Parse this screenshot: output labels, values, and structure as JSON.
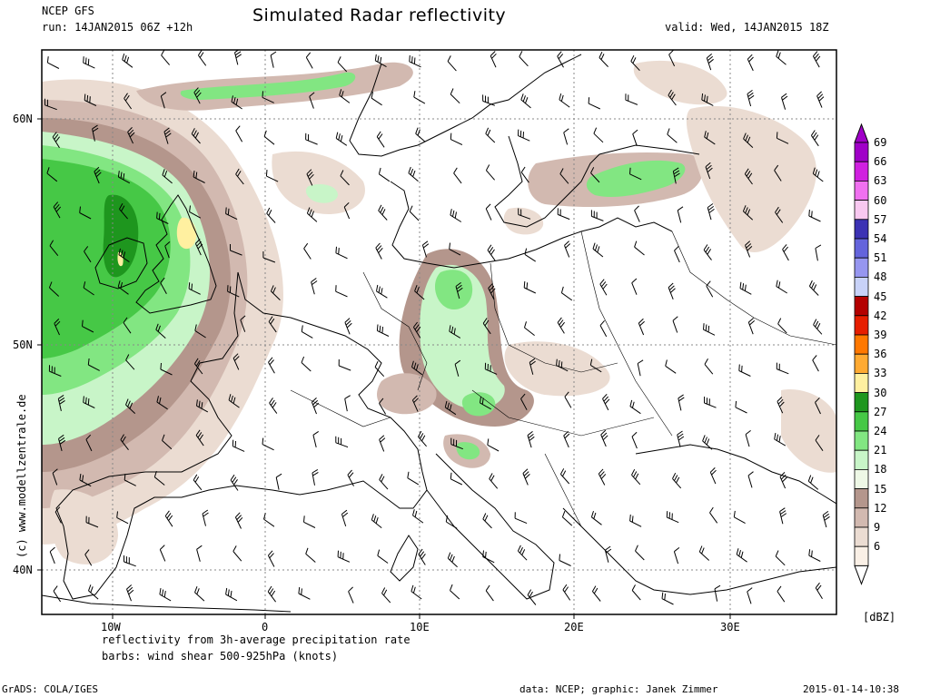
{
  "header": {
    "model": "NCEP GFS",
    "run": "run: 14JAN2015 06Z +12h",
    "title": "Simulated Radar reflectivity",
    "valid": "valid: Wed, 14JAN2015 18Z"
  },
  "map": {
    "lat_labels": [
      "60N",
      "50N",
      "40N"
    ],
    "lon_labels": [
      "10W",
      "0",
      "10E",
      "20E",
      "30E"
    ],
    "watermark": "(c) www.modellzentrale.de"
  },
  "legend": {
    "unit": "[dBZ]",
    "levels": [
      {
        "value": "69",
        "color": "#a000c8"
      },
      {
        "value": "66",
        "color": "#d020e0"
      },
      {
        "value": "63",
        "color": "#f070f0"
      },
      {
        "value": "60",
        "color": "#f8c8f0"
      },
      {
        "value": "57",
        "color": "#3c32b4"
      },
      {
        "value": "54",
        "color": "#6464dc"
      },
      {
        "value": "51",
        "color": "#9696f0"
      },
      {
        "value": "48",
        "color": "#c8d2f8"
      },
      {
        "value": "45",
        "color": "#b40000"
      },
      {
        "value": "42",
        "color": "#e61e00"
      },
      {
        "value": "39",
        "color": "#ff7800"
      },
      {
        "value": "36",
        "color": "#ffaa32"
      },
      {
        "value": "33",
        "color": "#fff0a0"
      },
      {
        "value": "30",
        "color": "#1e961e"
      },
      {
        "value": "27",
        "color": "#46c846"
      },
      {
        "value": "24",
        "color": "#82e682"
      },
      {
        "value": "21",
        "color": "#c8f5c8"
      },
      {
        "value": "18",
        "color": "#eef8e6"
      },
      {
        "value": "15",
        "color": "#b4968c"
      },
      {
        "value": "12",
        "color": "#d2b9b0"
      },
      {
        "value": "9",
        "color": "#ebdcd2"
      },
      {
        "value": "6",
        "color": "#faf0e6"
      }
    ]
  },
  "footer": {
    "desc1": "reflectivity from 3h-average precipitation rate",
    "desc2": "barbs: wind shear 500-925hPa (knots)",
    "grads": "GrADS: COLA/IGES",
    "source": "data: NCEP; graphic: Janek Zimmer",
    "timestamp": "2015-01-14-10:38"
  }
}
